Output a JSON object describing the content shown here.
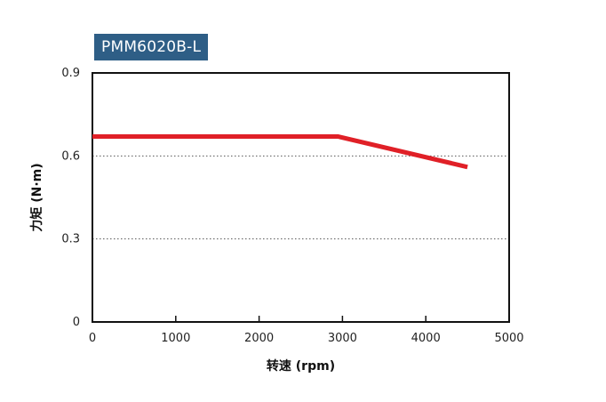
{
  "chart_data": {
    "type": "line",
    "title": "PMM6020B-L",
    "xlabel": "转速 (rpm)",
    "ylabel": "力矩 (N·m)",
    "xlim": [
      0,
      5000
    ],
    "ylim": [
      0,
      0.9
    ],
    "xticks": [
      "0",
      "1000",
      "2000",
      "3000",
      "4000",
      "5000"
    ],
    "yticks": [
      "0",
      "0.3",
      "0.6",
      "0.9"
    ],
    "grid": "horizontal-dotted",
    "series": [
      {
        "name": "torque",
        "color": "#e02027",
        "x": [
          0,
          2950,
          4500
        ],
        "y": [
          0.67,
          0.67,
          0.56
        ]
      }
    ]
  }
}
